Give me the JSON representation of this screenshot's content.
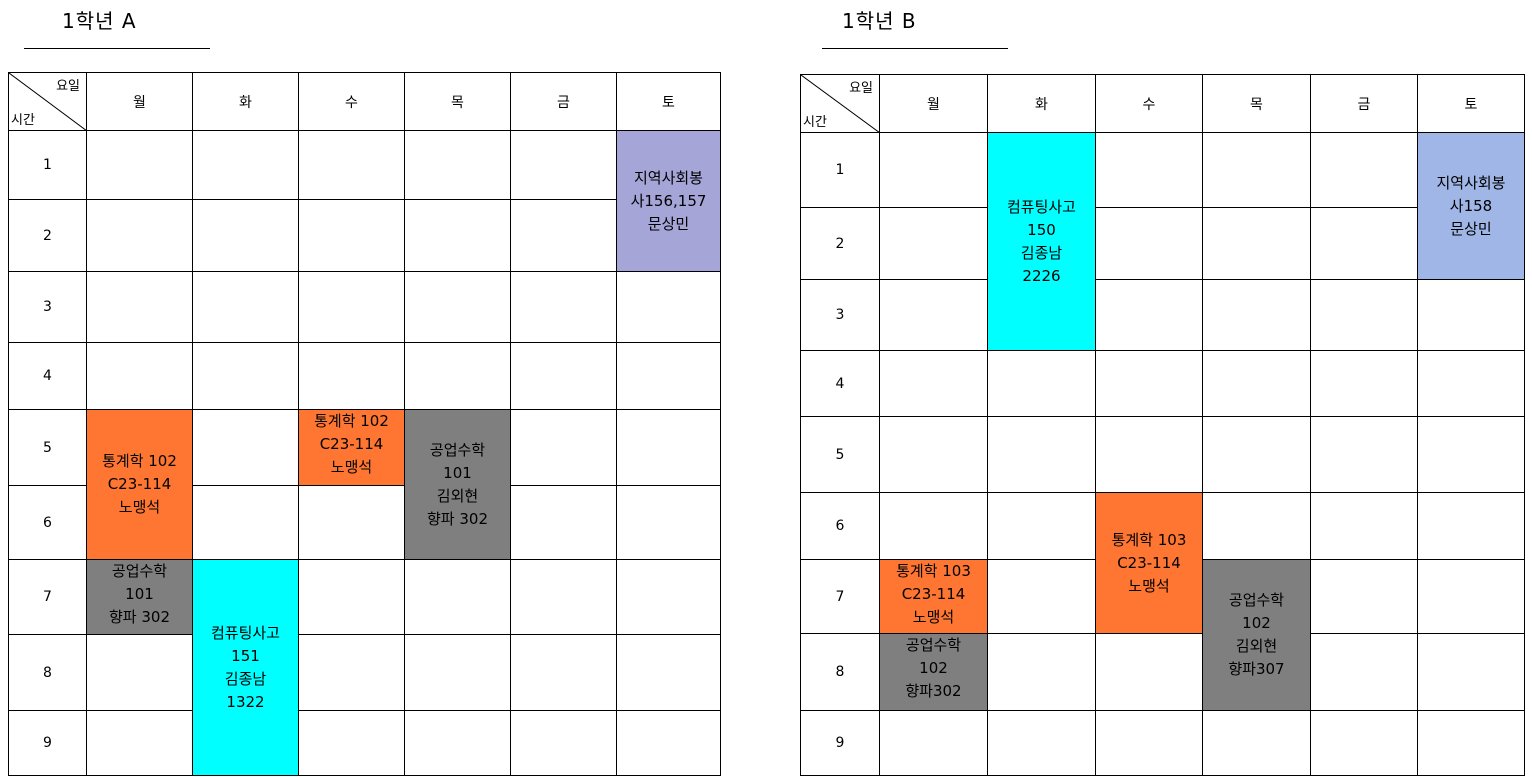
{
  "timetables": [
    {
      "title": "1학년 A",
      "corner": {
        "top": "요일",
        "bottom": "시간"
      },
      "days": [
        "월",
        "화",
        "수",
        "목",
        "금",
        "토"
      ],
      "periods": [
        "1",
        "2",
        "3",
        "4",
        "5",
        "6",
        "7",
        "8",
        "9"
      ],
      "courses": [
        {
          "name": "지역사회봉사156,157",
          "lines": [
            "지역사회봉",
            "사156,157",
            "문상민"
          ],
          "day": "토",
          "start_period": 1,
          "end_period": 2,
          "color": "#A5A5D8"
        },
        {
          "name": "통계학 102",
          "lines": [
            "통계학 102",
            "C23-114",
            "노맹석"
          ],
          "day": "월",
          "start_period": 5,
          "end_period": 6,
          "color": "#FF7632"
        },
        {
          "name": "통계학 102",
          "lines": [
            "통계학 102",
            "C23-114",
            "노맹석"
          ],
          "day": "수",
          "start_period": 5,
          "end_period": 5,
          "color": "#FF7632"
        },
        {
          "name": "공업수학 101",
          "lines": [
            "공업수학",
            "101",
            "김외현",
            "향파 302"
          ],
          "day": "목",
          "start_period": 5,
          "end_period": 6,
          "color": "#7F7F7F"
        },
        {
          "name": "공업수학 101",
          "lines": [
            "공업수학",
            "101",
            "향파 302"
          ],
          "day": "월",
          "start_period": 7,
          "end_period": 7,
          "color": "#7F7F7F"
        },
        {
          "name": "컴퓨팅사고 151",
          "lines": [
            "컴퓨팅사고",
            "151",
            "김종남",
            "1322"
          ],
          "day": "화",
          "start_period": 7,
          "end_period": 9,
          "color": "#00FFFF"
        }
      ]
    },
    {
      "title": "1학년 B",
      "corner": {
        "top": "요일",
        "bottom": "시간"
      },
      "days": [
        "월",
        "화",
        "수",
        "목",
        "금",
        "토"
      ],
      "periods": [
        "1",
        "2",
        "3",
        "4",
        "5",
        "6",
        "7",
        "8",
        "9"
      ],
      "courses": [
        {
          "name": "컴퓨팅사고 150",
          "lines": [
            "컴퓨팅사고",
            "150",
            "김종남",
            "2226"
          ],
          "day": "화",
          "start_period": 1,
          "end_period": 3,
          "color": "#00FFFF"
        },
        {
          "name": "지역사회봉사158",
          "lines": [
            "지역사회봉",
            "사158",
            "문상민"
          ],
          "day": "토",
          "start_period": 1,
          "end_period": 2,
          "color": "#9FB6E6"
        },
        {
          "name": "통계학 103",
          "lines": [
            "통계학 103",
            "C23-114",
            "노맹석"
          ],
          "day": "수",
          "start_period": 6,
          "end_period": 7,
          "color": "#FF7632"
        },
        {
          "name": "통계학 103",
          "lines": [
            "통계학 103",
            "C23-114",
            "노맹석"
          ],
          "day": "월",
          "start_period": 7,
          "end_period": 7,
          "color": "#FF7632"
        },
        {
          "name": "공업수학 102",
          "lines": [
            "공업수학",
            "102",
            "김외현",
            "향파307"
          ],
          "day": "목",
          "start_period": 7,
          "end_period": 8,
          "color": "#7F7F7F"
        },
        {
          "name": "공업수학 102",
          "lines": [
            "공업수학",
            "102",
            "향파302"
          ],
          "day": "월",
          "start_period": 8,
          "end_period": 8,
          "color": "#7F7F7F"
        }
      ]
    }
  ]
}
